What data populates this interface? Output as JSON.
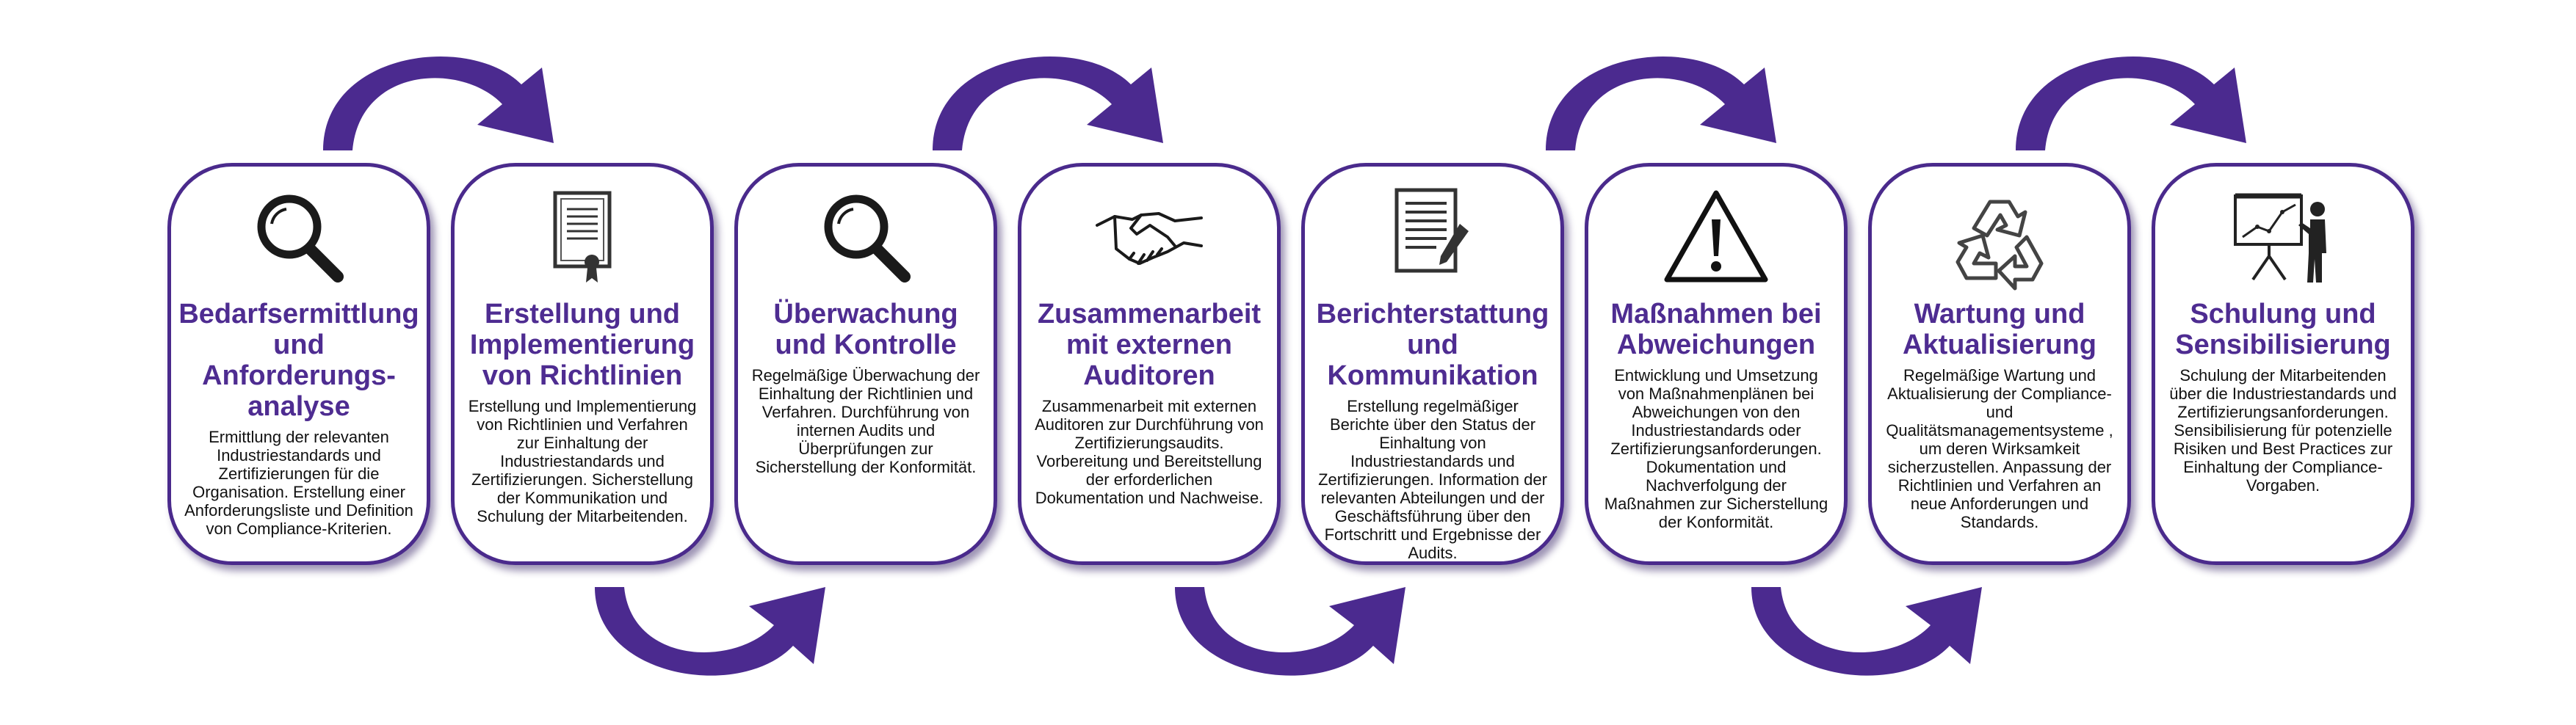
{
  "colors": {
    "accent": "#4e2c91",
    "border": "#4a2a8c",
    "arrow": "#4b2a8f"
  },
  "steps": [
    {
      "icon": "magnifier-icon",
      "title": "Bedarfsermittlung und Anforderungs-analyse",
      "text": "Ermittlung der relevanten Industriestandards und Zertifizierungen für die Organisation. Erstellung einer Anforderungsliste und Definition von Compliance-Kriterien."
    },
    {
      "icon": "certificate-document-icon",
      "title": "Erstellung und Implementierung von Richtlinien",
      "text": "Erstellung und Implementierung von Richtlinien und Verfahren zur Einhaltung der Industriestandards und Zertifizierungen. Sicherstellung der Kommunikation und Schulung der Mitarbeitenden."
    },
    {
      "icon": "magnifier-icon",
      "title": "Überwachung und Kontrolle",
      "text": "Regelmäßige Überwachung der Einhaltung der Richtlinien und Verfahren. Durchführung von internen Audits und Überprüfungen zur Sicherstellung der Konformität."
    },
    {
      "icon": "handshake-icon",
      "title": "Zusammenarbeit mit externen Auditoren",
      "text": "Zusammenarbeit mit externen Auditoren zur Durchführung von Zertifizierungsaudits. Vorbereitung und Bereitstellung der erforderlichen Dokumentation und Nachweise."
    },
    {
      "icon": "document-pen-icon",
      "title": "Berichterstattung und Kommunikation",
      "text": "Erstellung regelmäßiger Berichte über den Status der Einhaltung von Industriestandards und Zertifizierungen. Information der relevanten Abteilungen und der Geschäftsführung über den Fortschritt und Ergebnisse der Audits."
    },
    {
      "icon": "warning-triangle-icon",
      "title": "Maßnahmen bei Abweichungen",
      "text": "Entwicklung und Umsetzung von Maßnahmenplänen bei Abweichungen von den Industriestandards oder Zertifizierungsanforderungen. Dokumentation und Nachverfolgung der Maßnahmen zur Sicherstellung der Konformität."
    },
    {
      "icon": "recycle-arrows-icon",
      "title": "Wartung und Aktualisierung",
      "text": "Regelmäßige Wartung und Aktualisierung der Compliance- und Qualitätsmanagementsysteme , um deren Wirksamkeit sicherzustellen. Anpassung der Richtlinien und Verfahren an neue Anforderungen und Standards."
    },
    {
      "icon": "presentation-training-icon",
      "title": "Schulung und Sensibilisierung",
      "text": "Schulung der Mitarbeitenden über die Industriestandards und Zertifizierungsanforderungen. Sensibilisierung für potenzielle Risiken und Best Practices zur Einhaltung der Compliance-Vorgaben."
    }
  ]
}
